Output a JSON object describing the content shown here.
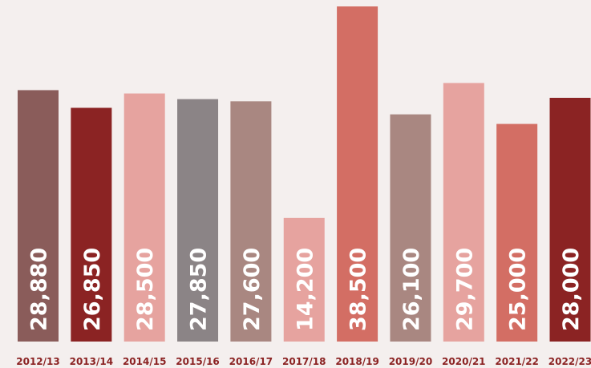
{
  "chart_data": {
    "type": "bar",
    "categories": [
      "2012/13",
      "2013/14",
      "2014/15",
      "2015/16",
      "2016/17",
      "2017/18",
      "2018/19",
      "2019/20",
      "2020/21",
      "2021/22",
      "2022/23"
    ],
    "values": [
      28880,
      26850,
      28500,
      27850,
      27600,
      14200,
      38500,
      26100,
      29700,
      25000,
      28000
    ],
    "value_labels": [
      "28,880",
      "26,850",
      "28,500",
      "27,850",
      "27,600",
      "14,200",
      "38,500",
      "26,100",
      "29,700",
      "25,000",
      "28,000"
    ],
    "colors": [
      "#8a5c5a",
      "#8b2323",
      "#e6a39f",
      "#8b8486",
      "#a98781",
      "#e6a39f",
      "#d36e64",
      "#a98781",
      "#e6a39f",
      "#d36e64",
      "#8b2323"
    ]
  }
}
